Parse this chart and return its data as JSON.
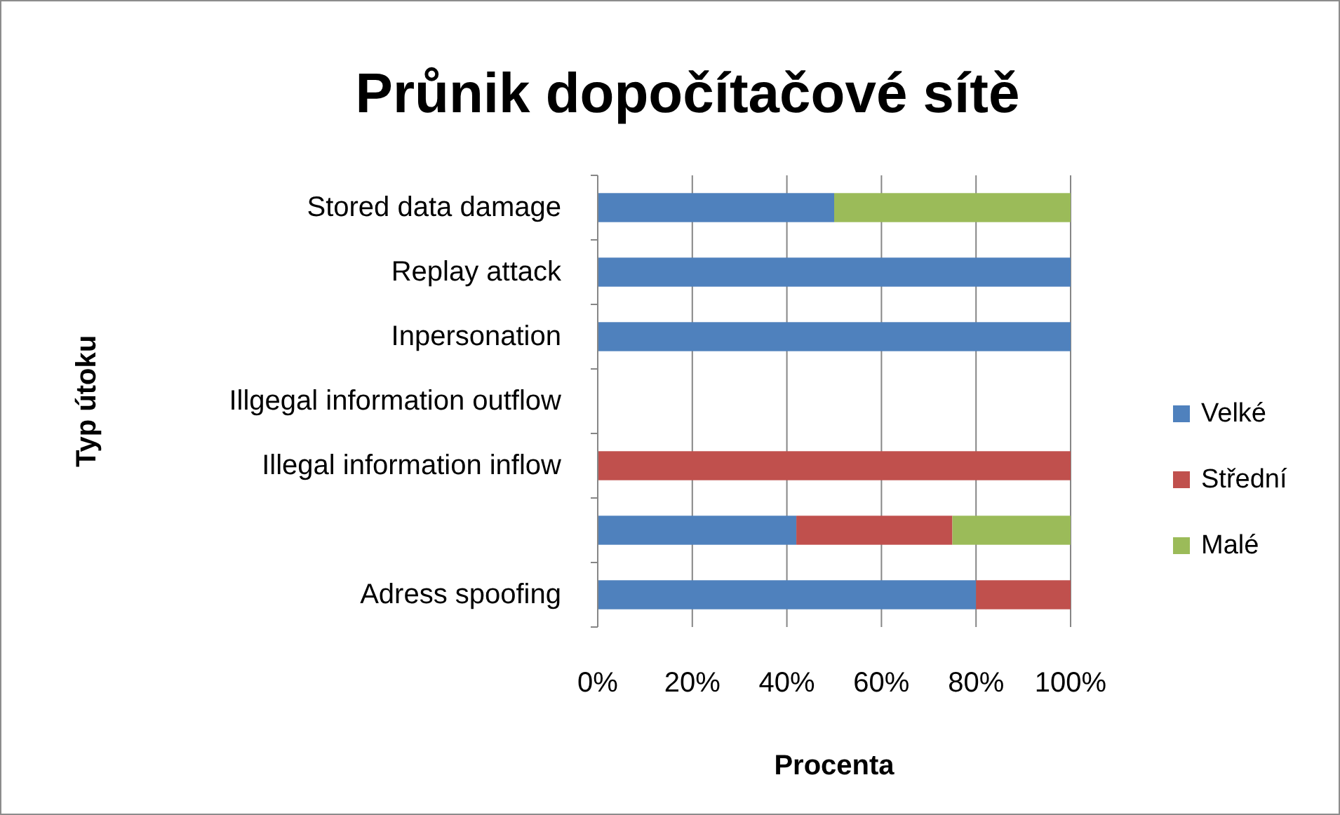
{
  "chart_data": {
    "type": "bar",
    "orientation": "horizontal",
    "stacked": true,
    "title": "Průnik dopočítačové sítě",
    "xlabel": "Procenta",
    "ylabel": "Typ útoku",
    "categories": [
      "Stored data damage",
      "Replay attack",
      "Inpersonation",
      "Illgegal information outflow",
      "Illegal information inflow",
      null,
      "Adress spoofing"
    ],
    "series": [
      {
        "name": "Velké",
        "color": "#4f81bd",
        "values": [
          50,
          100,
          100,
          0,
          0,
          42,
          80
        ]
      },
      {
        "name": "Střední",
        "color": "#c0504d",
        "values": [
          0,
          0,
          0,
          0,
          100,
          33,
          20
        ]
      },
      {
        "name": "Malé",
        "color": "#9bbb59",
        "values": [
          50,
          0,
          0,
          0,
          0,
          25,
          0
        ]
      }
    ],
    "xlim": [
      0,
      100
    ],
    "xticks": [
      {
        "value": 0,
        "label": "0%"
      },
      {
        "value": 20,
        "label": "20%"
      },
      {
        "value": 40,
        "label": "40%"
      },
      {
        "value": 60,
        "label": "60%"
      },
      {
        "value": 80,
        "label": "80%"
      },
      {
        "value": 100,
        "label": "100%"
      }
    ],
    "grid": "x",
    "legend": "right"
  }
}
